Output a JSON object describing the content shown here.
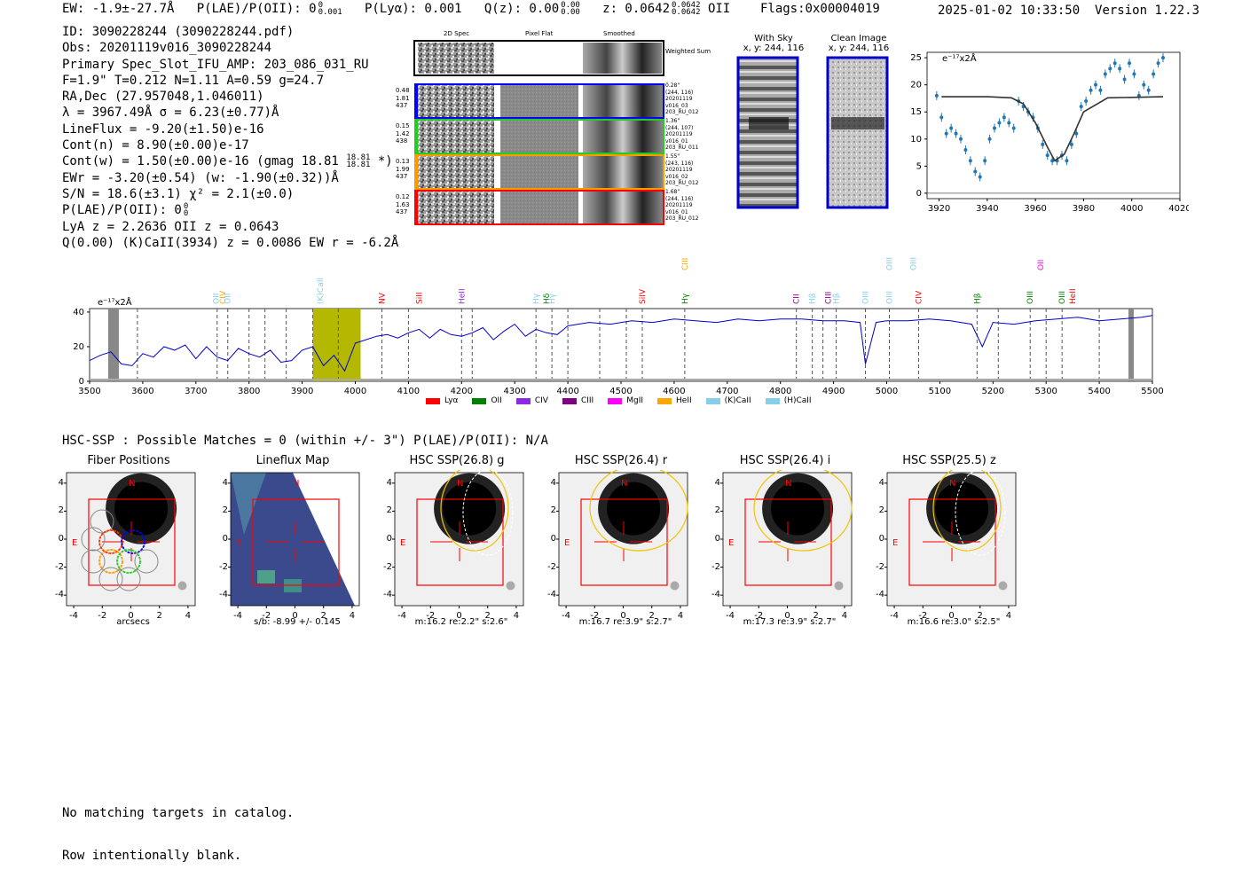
{
  "header": {
    "ew": "EW: -1.9±-27.7Å",
    "plae_label": "P(LAE)/P(OII): 0",
    "plae_sup": "0",
    "plae_sub": "0.001",
    "plya": "P(Lyα): 0.001",
    "qz": "Q(z): 0.00",
    "qz_sup": "0.00",
    "qz_sub": "0.00",
    "z": "z: 0.0642",
    "z_sup": "0.0642",
    "z_sub": "0.0642",
    "z_line": "OII",
    "flags": "Flags:0x00004019",
    "datetime": "2025-01-02 10:33:50",
    "version": "Version 1.22.3"
  },
  "info": {
    "id": "ID: 3090228244 (3090228244.pdf)",
    "obs": "Obs: 20201119v016_3090228244",
    "primary": "Primary Spec_Slot_IFU_AMP: 203_086_031_RU",
    "fit": "F=1.9\"  T=0.212  N=1.11  A=0.59  g=24.7",
    "radec": "RA,Dec (27.957048,1.046011)",
    "lambda": "λ = 3967.49Å  σ = 6.23(±0.77)Å",
    "lineflux": "LineFlux = -9.20(±1.50)e-16",
    "contn": "Cont(n) = 8.90(±0.00)e-17",
    "contw": "Cont(w) = 1.50(±0.00)e-16 (gmag 18.81",
    "contw_sup": "18.81",
    "contw_sub": "18.81",
    "contw_end": "*)",
    "ewr": "EWr = -3.20(±0.54) (w: -1.90(±0.32))Å",
    "sn": "S/N = 18.6(±3.1)  χ² = 2.1(±0.0)",
    "plae2": "P(LAE)/P(OII): 0",
    "plae2_sup": "0",
    "plae2_sub": "0",
    "lya": "LyA z = 2.2636  OII z = 0.0643",
    "q": "Q(0.00) (K)CaII(3934) z = 0.0086  EW r = -6.2Å"
  },
  "stamps": {
    "col_headers": [
      "2D Spec",
      "Pixel Flat",
      "Smoothed"
    ],
    "weighted_label": "Weighted Sum",
    "rows": [
      {
        "color": "#0000ff",
        "left": [
          "0.48",
          "1.81",
          "437"
        ],
        "right": [
          "0.28\"",
          "(244, 116)",
          "20201119",
          "v016_03",
          "203_RU_012"
        ]
      },
      {
        "color": "#22cc22",
        "left": [
          "0.15",
          "1.42",
          "438"
        ],
        "right": [
          "1.36\"",
          "(244, 107)",
          "20201119",
          "v016_01",
          "203_RU_011"
        ]
      },
      {
        "color": "#ff9900",
        "left": [
          "0.13",
          "1.99",
          "437"
        ],
        "right": [
          "1.55\"",
          "(243, 116)",
          "20201119",
          "v016_02",
          "203_RU_012"
        ]
      },
      {
        "color": "#ff0000",
        "left": [
          "0.12",
          "1.63",
          "437"
        ],
        "right": [
          "1.68\"",
          "(244, 116)",
          "20201119",
          "v016_01",
          "203_RU_012"
        ]
      }
    ]
  },
  "sky_images": {
    "with_sky": "With Sky",
    "with_sky_xy": "x, y: 244, 116",
    "clean": "Clean Image",
    "clean_xy": "x, y: 244, 116"
  },
  "fit_plot": {
    "unit_label": "e⁻¹⁷x2Å",
    "xticks": [
      "3920",
      "3940",
      "3960",
      "3980",
      "4000",
      "4020"
    ],
    "yticks": [
      "0",
      "5",
      "10",
      "15",
      "20",
      "25"
    ]
  },
  "spectrum": {
    "unit_label": "e⁻¹⁷x2Å",
    "xticks": [
      "3500",
      "3600",
      "3700",
      "3800",
      "3900",
      "4000",
      "4100",
      "4200",
      "4300",
      "4400",
      "4500",
      "4600",
      "4700",
      "4800",
      "4900",
      "5000",
      "5100",
      "5200",
      "5300",
      "5400",
      "5500"
    ],
    "yticks": [
      "0",
      "20",
      "40"
    ],
    "legend": [
      {
        "label": "Lyα",
        "color": "#ff0000"
      },
      {
        "label": "OII",
        "color": "#008000"
      },
      {
        "label": "CIV",
        "color": "#8a2be2"
      },
      {
        "label": "CIII",
        "color": "#800080"
      },
      {
        "label": "MgII",
        "color": "#ff00ff"
      },
      {
        "label": "HeII",
        "color": "#ffa500"
      },
      {
        "label": "(K)CaII",
        "color": "#87ceeb"
      },
      {
        "label": "(H)CaII",
        "color": "#87ceeb"
      }
    ],
    "line_labels": [
      {
        "text": "OII",
        "color": "#87ceeb",
        "w": 3738,
        "row": 1
      },
      {
        "text": "CIV",
        "color": "#ffa500",
        "w": 3750,
        "row": 1
      },
      {
        "text": "OII",
        "color": "#87ceeb",
        "w": 3760,
        "row": 1
      },
      {
        "text": "(K)CaII",
        "color": "#87ceeb",
        "w": 3934,
        "row": 1
      },
      {
        "text": "NV",
        "color": "#ff0000",
        "w": 4050,
        "row": 1
      },
      {
        "text": "SiII",
        "color": "#ff0000",
        "w": 4120,
        "row": 1
      },
      {
        "text": "HeII",
        "color": "#8a2be2",
        "w": 4200,
        "row": 1
      },
      {
        "text": "Hγ",
        "color": "#87ceeb",
        "w": 4340,
        "row": 1
      },
      {
        "text": "Hδ",
        "color": "#008000",
        "w": 4360,
        "row": 1
      },
      {
        "text": "Hγ",
        "color": "#87ceeb",
        "w": 4370,
        "row": 1
      },
      {
        "text": "SiIV",
        "color": "#ff0000",
        "w": 4540,
        "row": 1
      },
      {
        "text": "CIII",
        "color": "#ffa500",
        "w": 4620,
        "row": 0
      },
      {
        "text": "Hγ",
        "color": "#008000",
        "w": 4620,
        "row": 1
      },
      {
        "text": "CII",
        "color": "#800080",
        "w": 4830,
        "row": 1
      },
      {
        "text": "Hβ",
        "color": "#87ceeb",
        "w": 4860,
        "row": 1
      },
      {
        "text": "CIII",
        "color": "#800080",
        "w": 4890,
        "row": 1
      },
      {
        "text": "Hβ",
        "color": "#87ceeb",
        "w": 4905,
        "row": 1
      },
      {
        "text": "OIII",
        "color": "#87ceeb",
        "w": 4960,
        "row": 1
      },
      {
        "text": "OIII",
        "color": "#87ceeb",
        "w": 5005,
        "row": 1
      },
      {
        "text": "OIII",
        "color": "#87ceeb",
        "w": 5005,
        "row": 0
      },
      {
        "text": "OIII",
        "color": "#87ceeb",
        "w": 5050,
        "row": 0
      },
      {
        "text": "CIV",
        "color": "#ff0000",
        "w": 5060,
        "row": 1
      },
      {
        "text": "Hβ",
        "color": "#008000",
        "w": 5170,
        "row": 1
      },
      {
        "text": "OII",
        "color": "#ff00ff",
        "w": 5290,
        "row": 0
      },
      {
        "text": "OIII",
        "color": "#008000",
        "w": 5270,
        "row": 1
      },
      {
        "text": "OIII",
        "color": "#008000",
        "w": 5330,
        "row": 1
      },
      {
        "text": "HeII",
        "color": "#ff0000",
        "w": 5350,
        "row": 1
      }
    ]
  },
  "hsc": {
    "summary": "HSC-SSP : Possible Matches = 0 (within +/- 3\")  P(LAE)/P(OII): N/A",
    "ticks": [
      "-4",
      "-2",
      "0",
      "2",
      "4"
    ],
    "panels": [
      {
        "title": "Fiber Positions",
        "caption": "arcsecs"
      },
      {
        "title": "Lineflux Map",
        "caption": "s/b: -8.99 +/- 0.145"
      },
      {
        "title": "HSC SSP(26.8) g",
        "caption": "m:16.2  re:2.2\"  s:2.6\""
      },
      {
        "title": "HSC SSP(26.4) r",
        "caption": "m:16.7  re:3.9\"  s:2.7\""
      },
      {
        "title": "HSC SSP(26.4) i",
        "caption": "m:17.3  re:3.9\"  s:2.7\""
      },
      {
        "title": "HSC SSP(25.5) z",
        "caption": "m:16.6  re:3.0\"  s:2.5\""
      }
    ],
    "n_label": "N",
    "e_label": "E"
  },
  "footer": {
    "line1": "No matching targets in catalog.",
    "line2": "Row intentionally blank."
  },
  "chart_data": [
    {
      "type": "line",
      "title": "",
      "xlabel": "",
      "ylabel": "e⁻¹⁷x2Å",
      "xlim": [
        3500,
        5500
      ],
      "ylim": [
        0,
        40
      ],
      "highlight_band": [
        3920,
        4010
      ],
      "series": [
        {
          "x": [
            3500,
            3520,
            3540,
            3560,
            3580,
            3600,
            3620,
            3640,
            3660,
            3680,
            3700,
            3720,
            3740,
            3760,
            3780,
            3800,
            3820,
            3840,
            3860,
            3880,
            3900,
            3920,
            3940,
            3960,
            3980,
            4000,
            4020,
            4040,
            4060,
            4080,
            4100,
            4120,
            4140,
            4160,
            4180,
            4200,
            4220,
            4240,
            4260,
            4280,
            4300,
            4320,
            4340,
            4360,
            4380,
            4400,
            4440,
            4480,
            4520,
            4560,
            4600,
            4640,
            4680,
            4720,
            4760,
            4800,
            4840,
            4880,
            4920,
            4950,
            4960,
            4980,
            5000,
            5040,
            5080,
            5120,
            5160,
            5180,
            5200,
            5240,
            5280,
            5320,
            5360,
            5400,
            5440,
            5480,
            5500
          ],
          "y": [
            12,
            15,
            17,
            10,
            9,
            16,
            14,
            20,
            18,
            21,
            13,
            20,
            14,
            12,
            19,
            16,
            14,
            18,
            11,
            12,
            18,
            20,
            9,
            15,
            6,
            22,
            24,
            26,
            27,
            25,
            28,
            30,
            25,
            30,
            27,
            26,
            28,
            31,
            24,
            29,
            33,
            26,
            30,
            28,
            27,
            32,
            34,
            33,
            35,
            34,
            36,
            35,
            34,
            36,
            35,
            36,
            36,
            35,
            35,
            34,
            10,
            34,
            35,
            35,
            36,
            35,
            33,
            20,
            34,
            33,
            35,
            36,
            37,
            35,
            36,
            37,
            38
          ]
        }
      ]
    },
    {
      "type": "scatter",
      "title": "",
      "xlabel": "",
      "ylabel": "e⁻¹⁷x2Å",
      "xlim": [
        3915,
        4020
      ],
      "ylim": [
        -1,
        26
      ],
      "series": [
        {
          "x": [
            3919,
            3921,
            3923,
            3925,
            3927,
            3929,
            3931,
            3933,
            3935,
            3937,
            3939,
            3941,
            3943,
            3945,
            3947,
            3949,
            3951,
            3953,
            3955,
            3957,
            3959,
            3961,
            3963,
            3965,
            3967,
            3969,
            3971,
            3973,
            3975,
            3977,
            3979,
            3981,
            3983,
            3985,
            3987,
            3989,
            3991,
            3993,
            3995,
            3997,
            3999,
            4001,
            4003,
            4005,
            4007,
            4009,
            4011,
            4013
          ],
          "y": [
            18,
            14,
            11,
            12,
            11,
            10,
            8,
            6,
            4,
            3,
            6,
            10,
            12,
            13,
            14,
            13,
            12,
            17,
            16,
            15,
            14,
            12,
            9,
            7,
            6,
            6,
            7,
            6,
            9,
            11,
            16,
            17,
            19,
            20,
            19,
            22,
            23,
            24,
            23,
            21,
            24,
            22,
            18,
            20,
            19,
            22,
            24,
            25
          ]
        },
        {
          "name": "",
          "x": [
            3921,
            3940,
            3950,
            3955,
            3960,
            3965,
            3968,
            3972,
            3976,
            3980,
            3990,
            4013
          ],
          "y": [
            17.8,
            17.8,
            17.6,
            16.5,
            13,
            8.5,
            6,
            7.2,
            11,
            15,
            17.6,
            17.8
          ]
        }
      ]
    }
  ]
}
